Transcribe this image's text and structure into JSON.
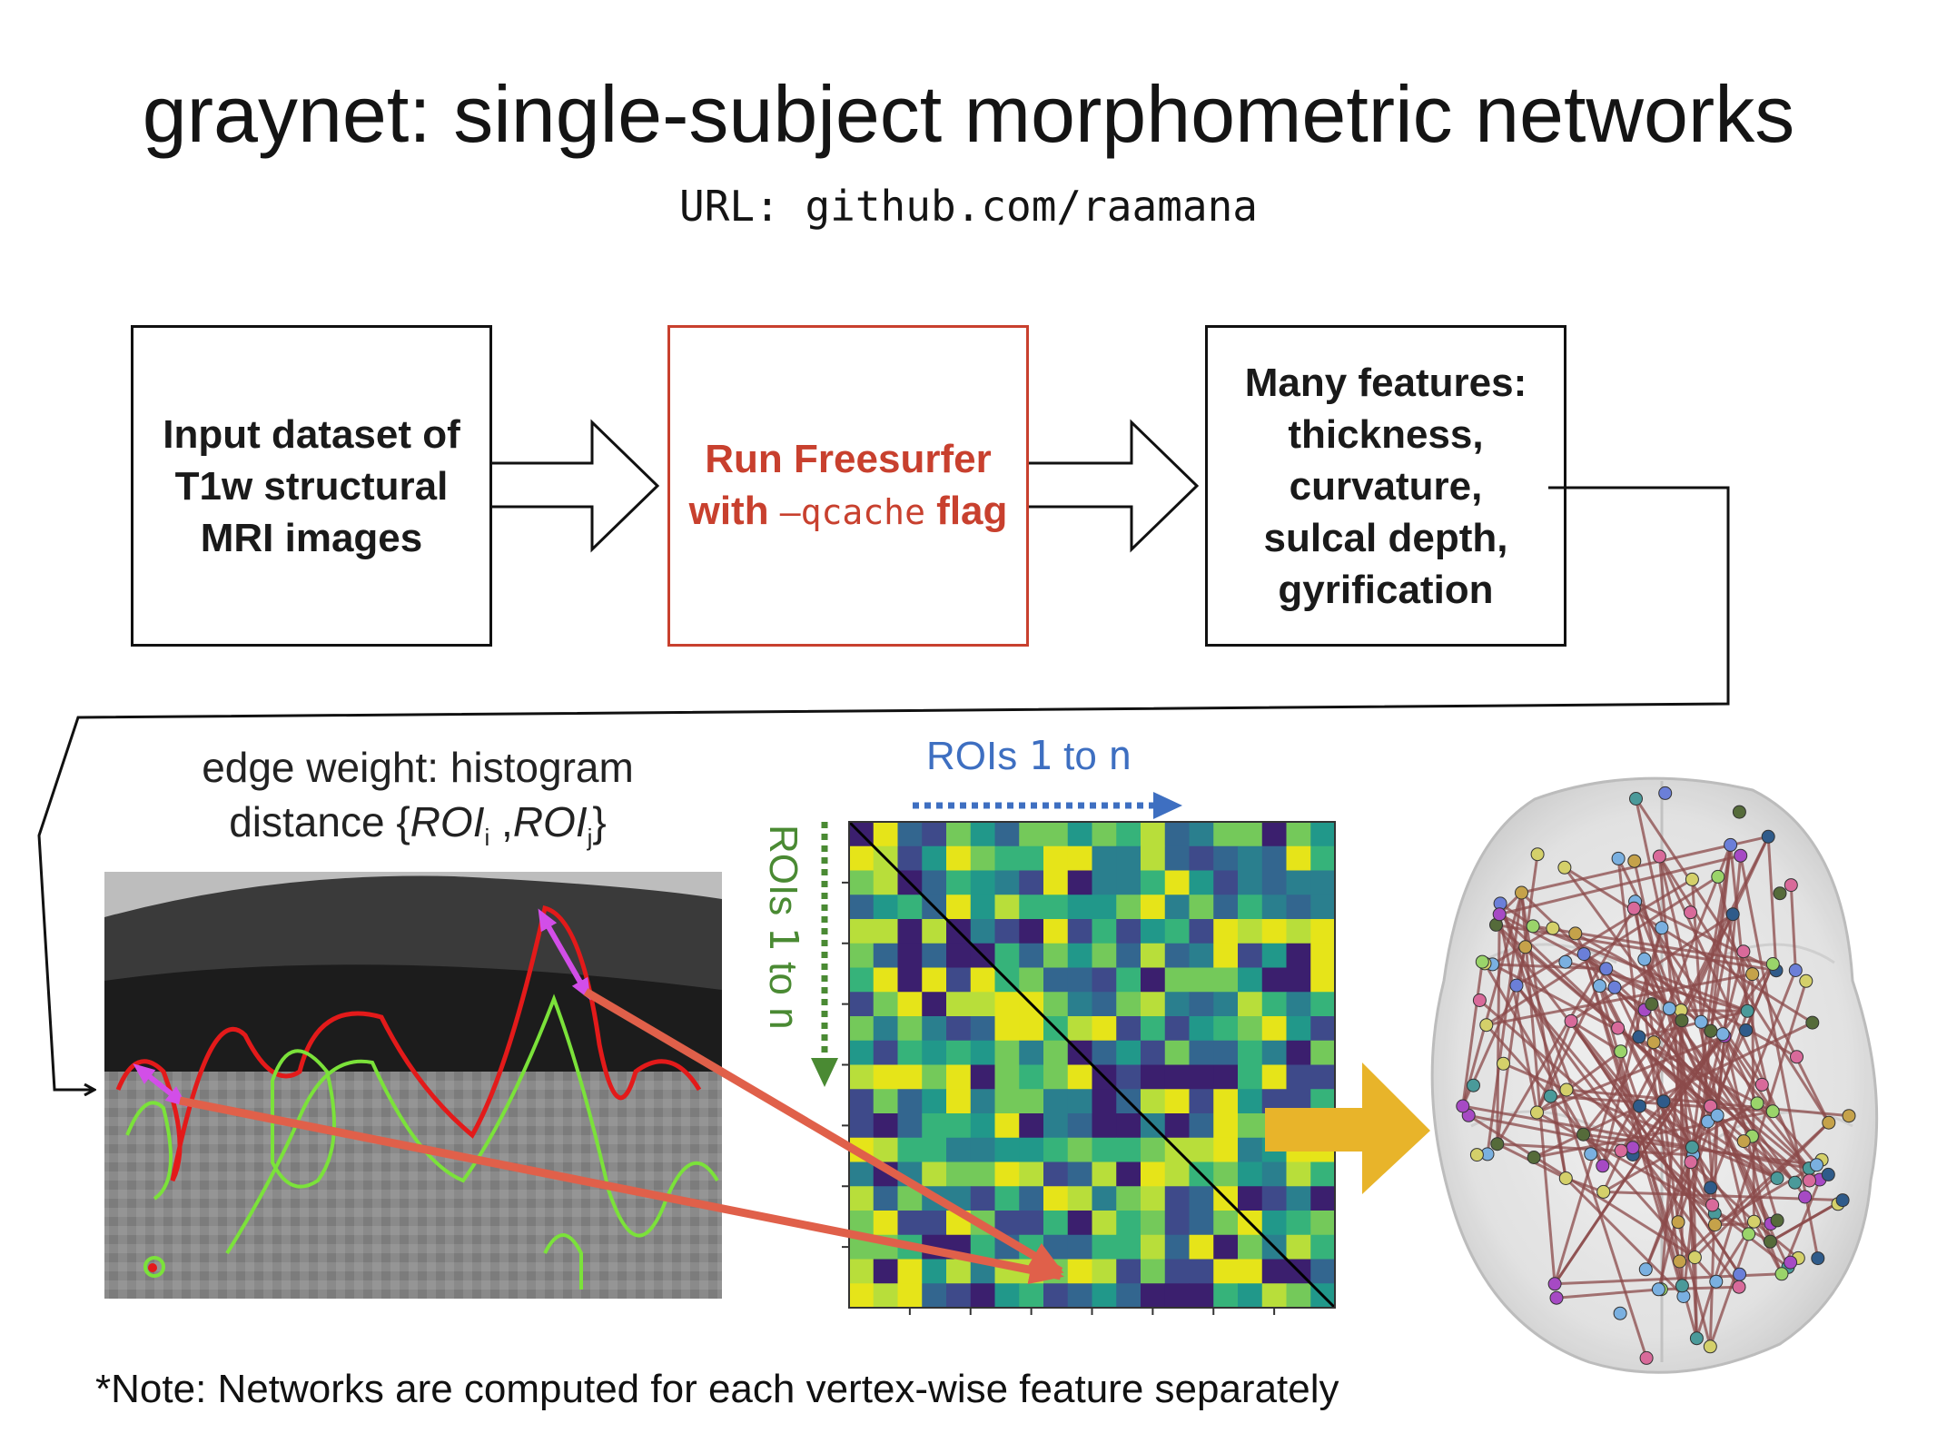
{
  "title": "graynet: single-subject morphometric networks",
  "url_line": "URL: github.com/raamana",
  "boxes": {
    "input": [
      "Input dataset of",
      "T1w structural",
      "MRI images"
    ],
    "freesurfer": {
      "line1": "Run Freesurfer",
      "line2_pre": "with ",
      "line2_flag": "–qcache",
      "line2_post": " flag"
    },
    "features": [
      "Many features:",
      "thickness,",
      "curvature,",
      "sulcal depth,",
      "gyrification"
    ]
  },
  "edge_weight": {
    "line1": "edge weight: histogram",
    "line2_pre": "distance {",
    "roi": "ROI",
    "sub_i": "i",
    "sep": " ,",
    "sub_j": "j",
    "line2_post": "}"
  },
  "matrix_labels": {
    "top_pre": "ROIs ",
    "top_1": "1",
    "top_mid": " to ",
    "top_n": "n",
    "left_pre": "ROIs ",
    "left_1": "1",
    "left_mid": " to ",
    "left_n": "n"
  },
  "note": "*Note: Networks are computed for each vertex-wise feature separately",
  "colors": {
    "freesurfer_red": "#c8402e",
    "roi_blue": "#3e6fc1",
    "roi_green": "#4a8a33",
    "arrow_orange": "#e8b42a",
    "pointer_arrow": "#e0604a",
    "magenta": "#d24ee8",
    "pial_red": "#e31a1a",
    "white_green": "#7be23a",
    "edge_brown": "#8b4a4a"
  },
  "icons": [
    "hollow-right-arrow-icon",
    "connector-arrow-icon",
    "double-headed-arrow-icon",
    "big-orange-arrow-icon"
  ]
}
